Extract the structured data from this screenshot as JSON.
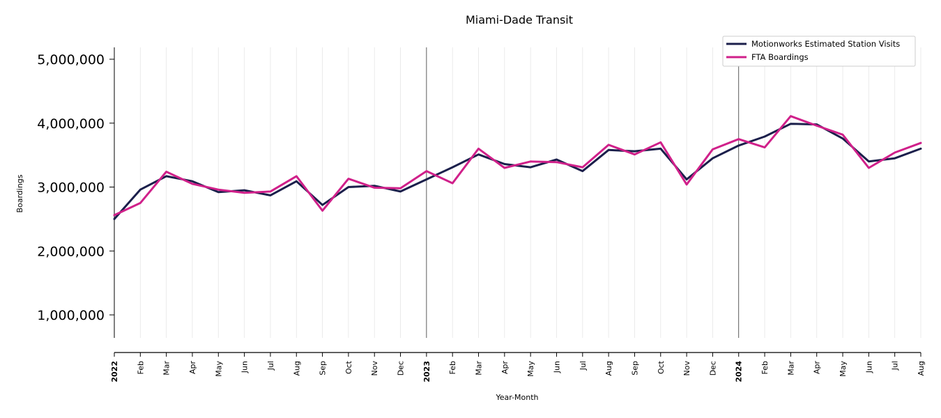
{
  "chart_data": {
    "type": "line",
    "title": "Miami-Dade Transit",
    "xlabel": "Year-Month",
    "ylabel": "Boardings",
    "x": [
      "2022",
      "Feb",
      "Mar",
      "Apr",
      "May",
      "Jun",
      "Jul",
      "Aug",
      "Sep",
      "Oct",
      "Nov",
      "Dec",
      "2023",
      "Feb",
      "Mar",
      "Apr",
      "May",
      "Jun",
      "Jul",
      "Aug",
      "Sep",
      "Oct",
      "Nov",
      "Dec",
      "2024",
      "Feb",
      "Mar",
      "Apr",
      "May",
      "Jun",
      "Jul",
      "Aug"
    ],
    "year_ticks": [
      "2022",
      "2023",
      "2024"
    ],
    "ylim": [
      650000,
      5200000
    ],
    "yticks": [
      1000000,
      2000000,
      3000000,
      4000000,
      5000000
    ],
    "ytick_labels": [
      "1,000,000",
      "2,000,000",
      "3,000,000",
      "4,000,000",
      "5,000,000"
    ],
    "grid": "vertical",
    "legend_position": "top-right",
    "series": [
      {
        "name": "Motionworks Estimated Station Visits",
        "color": "#1b1f4b",
        "values": [
          2500000,
          2960000,
          3170000,
          3090000,
          2920000,
          2950000,
          2870000,
          3090000,
          2720000,
          3000000,
          3020000,
          2930000,
          3120000,
          3310000,
          3510000,
          3360000,
          3310000,
          3430000,
          3250000,
          3580000,
          3560000,
          3600000,
          3120000,
          3450000,
          3650000,
          3790000,
          3990000,
          3980000,
          3760000,
          3400000,
          3450000,
          3600000
        ]
      },
      {
        "name": "FTA Boardings",
        "color": "#d0208a",
        "values": [
          2560000,
          2750000,
          3240000,
          3050000,
          2960000,
          2910000,
          2930000,
          3170000,
          2630000,
          3130000,
          2990000,
          2980000,
          3250000,
          3060000,
          3600000,
          3300000,
          3400000,
          3390000,
          3310000,
          3660000,
          3510000,
          3700000,
          3040000,
          3590000,
          3750000,
          3620000,
          4110000,
          3960000,
          3820000,
          3300000,
          3540000,
          3690000
        ]
      }
    ]
  }
}
